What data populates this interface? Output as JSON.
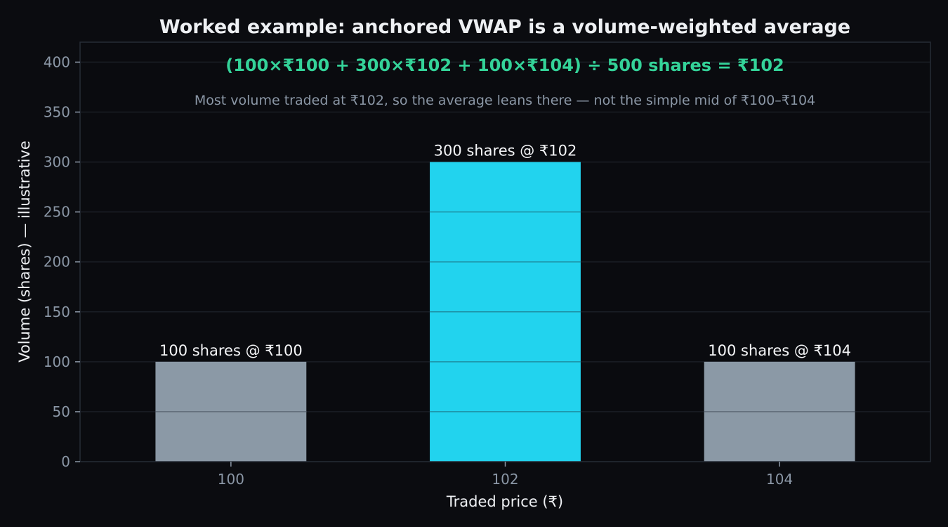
{
  "chart_data": {
    "type": "bar",
    "title": "Worked example: anchored VWAP is a volume-weighted average",
    "formula": "(100×₹100 + 300×₹102 + 100×₹104) ÷ 500 shares = ₹102",
    "subtitle": "Most volume traded at ₹102, so the average leans there — not the simple mid of ₹100–₹104",
    "xlabel": "Traded price (₹)",
    "ylabel": "Volume (shares) — illustrative",
    "categories": [
      "100",
      "102",
      "104"
    ],
    "values": [
      100,
      300,
      100
    ],
    "bar_labels": [
      "100 shares @ ₹100",
      "300 shares @ ₹102",
      "100 shares @ ₹104"
    ],
    "bar_colors": [
      "#8b99a6",
      "#22d3ee",
      "#8b99a6"
    ],
    "ylim": [
      0,
      420
    ],
    "yticks": [
      0,
      50,
      100,
      150,
      200,
      250,
      300,
      350,
      400
    ],
    "grid": true,
    "colors": {
      "background": "#0b0c10",
      "plot_background": "#0a0b0f",
      "grid": "#1a1e25",
      "frame": "#262c36",
      "formula": "#34d399",
      "highlight": "#22d3ee",
      "neutral": "#8b99a6"
    }
  }
}
